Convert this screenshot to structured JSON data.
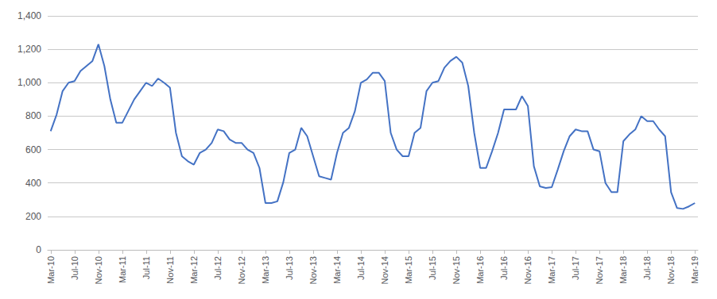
{
  "chart_data": {
    "type": "line",
    "color": "#4472C4",
    "grid": true,
    "categories": [
      "Mar-10",
      null,
      null,
      null,
      "Jul-10",
      null,
      null,
      null,
      "Nov-10",
      null,
      null,
      null,
      "Mar-11",
      null,
      null,
      null,
      "Jul-11",
      null,
      null,
      null,
      "Nov-11",
      null,
      null,
      null,
      "Mar-12",
      null,
      null,
      null,
      "Jul-12",
      null,
      null,
      null,
      "Nov-12",
      null,
      null,
      null,
      "Mar-13",
      null,
      null,
      null,
      "Jul-13",
      null,
      null,
      null,
      "Nov-13",
      null,
      null,
      null,
      "Mar-14",
      null,
      null,
      null,
      "Jul-14",
      null,
      null,
      null,
      "Nov-14",
      null,
      null,
      null,
      "Mar-15",
      null,
      null,
      null,
      "Jul-15",
      null,
      null,
      null,
      "Nov-15",
      null,
      null,
      null,
      "Mar-16",
      null,
      null,
      null,
      "Jul-16",
      null,
      null,
      null,
      "Nov-16",
      null,
      null,
      null,
      "Mar-17",
      null,
      null,
      null,
      "Jul-17",
      null,
      null,
      null,
      "Nov-17",
      null,
      null,
      null,
      "Mar-18",
      null,
      null,
      null,
      "Jul-18",
      null,
      null,
      null,
      "Nov-18",
      null,
      null,
      null,
      "Mar-19"
    ],
    "values": [
      710,
      810,
      950,
      1000,
      1010,
      1070,
      1100,
      1130,
      1230,
      1100,
      900,
      760,
      760,
      830,
      900,
      950,
      1000,
      980,
      1025,
      1000,
      970,
      700,
      560,
      530,
      510,
      580,
      600,
      640,
      720,
      710,
      660,
      640,
      640,
      600,
      580,
      490,
      280,
      280,
      290,
      405,
      580,
      600,
      730,
      680,
      560,
      440,
      430,
      420,
      580,
      700,
      730,
      830,
      1000,
      1020,
      1060,
      1060,
      1010,
      700,
      600,
      560,
      560,
      700,
      730,
      950,
      1000,
      1010,
      1090,
      1130,
      1155,
      1120,
      980,
      700,
      490,
      490,
      590,
      700,
      840,
      840,
      840,
      920,
      860,
      500,
      380,
      370,
      375,
      480,
      590,
      680,
      720,
      710,
      710,
      600,
      590,
      400,
      345,
      345,
      650,
      690,
      720,
      800,
      770,
      770,
      720,
      680,
      345,
      250,
      245,
      260,
      280
    ],
    "ylim": [
      0,
      1400
    ],
    "yticks": [
      0,
      200,
      400,
      600,
      800,
      {
        "value": 1000,
        "label": "1,000"
      },
      {
        "value": 1200,
        "label": "1,200"
      },
      {
        "value": 1400,
        "label": "1,400"
      }
    ]
  }
}
